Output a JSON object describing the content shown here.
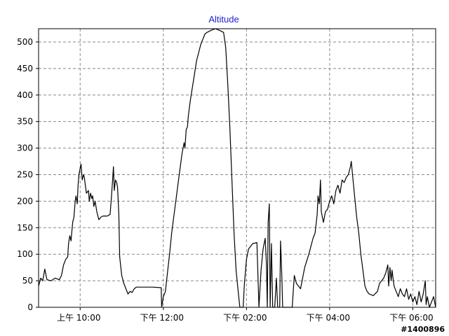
{
  "chart_data": {
    "type": "line",
    "title": "Altitude",
    "xlabel": "",
    "ylabel": "",
    "x_unit": "hours (clock time)",
    "xlim": [
      9.0,
      18.55
    ],
    "ylim": [
      0,
      525
    ],
    "yticks": [
      0,
      50,
      100,
      150,
      200,
      250,
      300,
      350,
      400,
      450,
      500
    ],
    "xticks": [
      {
        "x": 10,
        "label": "上午 10:00"
      },
      {
        "x": 12,
        "label": "下午 12:00"
      },
      {
        "x": 14,
        "label": "下午 02:00"
      },
      {
        "x": 16,
        "label": "下午 04:00"
      },
      {
        "x": 18,
        "label": "下午 06:00"
      }
    ],
    "grid": true,
    "legend": "none",
    "series": [
      {
        "color": "#000000",
        "points": [
          [
            9.0,
            40
          ],
          [
            9.05,
            55
          ],
          [
            9.1,
            50
          ],
          [
            9.15,
            72
          ],
          [
            9.2,
            52
          ],
          [
            9.3,
            50
          ],
          [
            9.4,
            55
          ],
          [
            9.5,
            52
          ],
          [
            9.55,
            60
          ],
          [
            9.6,
            80
          ],
          [
            9.65,
            90
          ],
          [
            9.7,
            95
          ],
          [
            9.72,
            120
          ],
          [
            9.75,
            135
          ],
          [
            9.78,
            125
          ],
          [
            9.82,
            160
          ],
          [
            9.85,
            170
          ],
          [
            9.88,
            200
          ],
          [
            9.9,
            210
          ],
          [
            9.93,
            195
          ],
          [
            9.95,
            230
          ],
          [
            9.97,
            250
          ],
          [
            10.0,
            262
          ],
          [
            10.02,
            270
          ],
          [
            10.05,
            240
          ],
          [
            10.08,
            250
          ],
          [
            10.1,
            245
          ],
          [
            10.12,
            232
          ],
          [
            10.15,
            215
          ],
          [
            10.2,
            220
          ],
          [
            10.22,
            200
          ],
          [
            10.25,
            215
          ],
          [
            10.28,
            205
          ],
          [
            10.3,
            210
          ],
          [
            10.33,
            190
          ],
          [
            10.36,
            200
          ],
          [
            10.4,
            180
          ],
          [
            10.45,
            165
          ],
          [
            10.5,
            170
          ],
          [
            10.55,
            172
          ],
          [
            10.65,
            172
          ],
          [
            10.72,
            175
          ],
          [
            10.75,
            205
          ],
          [
            10.78,
            240
          ],
          [
            10.8,
            265
          ],
          [
            10.82,
            220
          ],
          [
            10.85,
            240
          ],
          [
            10.88,
            235
          ],
          [
            10.9,
            225
          ],
          [
            10.93,
            175
          ],
          [
            10.95,
            95
          ],
          [
            11.0,
            60
          ],
          [
            11.05,
            45
          ],
          [
            11.1,
            35
          ],
          [
            11.15,
            25
          ],
          [
            11.2,
            30
          ],
          [
            11.25,
            28
          ],
          [
            11.3,
            35
          ],
          [
            11.35,
            38
          ],
          [
            11.45,
            38
          ],
          [
            11.6,
            38
          ],
          [
            11.75,
            38
          ],
          [
            11.95,
            37
          ],
          [
            11.96,
            0
          ],
          [
            12.0,
            20
          ],
          [
            12.05,
            30
          ],
          [
            12.1,
            65
          ],
          [
            12.15,
            100
          ],
          [
            12.2,
            140
          ],
          [
            12.25,
            170
          ],
          [
            12.3,
            200
          ],
          [
            12.35,
            230
          ],
          [
            12.4,
            260
          ],
          [
            12.45,
            290
          ],
          [
            12.5,
            310
          ],
          [
            12.52,
            300
          ],
          [
            12.55,
            335
          ],
          [
            12.58,
            340
          ],
          [
            12.6,
            360
          ],
          [
            12.65,
            390
          ],
          [
            12.7,
            415
          ],
          [
            12.75,
            440
          ],
          [
            12.8,
            465
          ],
          [
            12.85,
            480
          ],
          [
            12.9,
            495
          ],
          [
            12.95,
            505
          ],
          [
            13.0,
            515
          ],
          [
            13.05,
            518
          ],
          [
            13.15,
            522
          ],
          [
            13.25,
            525
          ],
          [
            13.35,
            522
          ],
          [
            13.45,
            518
          ],
          [
            13.5,
            490
          ],
          [
            13.55,
            420
          ],
          [
            13.6,
            340
          ],
          [
            13.65,
            240
          ],
          [
            13.7,
            140
          ],
          [
            13.75,
            70
          ],
          [
            13.8,
            30
          ],
          [
            13.84,
            0
          ],
          [
            13.92,
            0
          ],
          [
            13.95,
            45
          ],
          [
            14.0,
            90
          ],
          [
            14.05,
            110
          ],
          [
            14.1,
            115
          ],
          [
            14.15,
            120
          ],
          [
            14.25,
            122
          ],
          [
            14.3,
            0
          ],
          [
            14.35,
            70
          ],
          [
            14.4,
            110
          ],
          [
            14.45,
            130
          ],
          [
            14.48,
            80
          ],
          [
            14.5,
            0
          ],
          [
            14.52,
            160
          ],
          [
            14.55,
            195
          ],
          [
            14.57,
            0
          ],
          [
            14.6,
            120
          ],
          [
            14.63,
            0
          ],
          [
            14.68,
            0
          ],
          [
            14.72,
            55
          ],
          [
            14.75,
            0
          ],
          [
            14.8,
            0
          ],
          [
            14.82,
            125
          ],
          [
            14.85,
            60
          ],
          [
            14.87,
            0
          ],
          [
            14.92,
            0
          ],
          [
            15.1,
            0
          ],
          [
            15.15,
            60
          ],
          [
            15.2,
            45
          ],
          [
            15.3,
            35
          ],
          [
            15.4,
            75
          ],
          [
            15.5,
            100
          ],
          [
            15.6,
            130
          ],
          [
            15.65,
            140
          ],
          [
            15.7,
            175
          ],
          [
            15.72,
            210
          ],
          [
            15.75,
            195
          ],
          [
            15.78,
            240
          ],
          [
            15.8,
            180
          ],
          [
            15.85,
            160
          ],
          [
            15.9,
            180
          ],
          [
            15.95,
            185
          ],
          [
            16.0,
            200
          ],
          [
            16.05,
            210
          ],
          [
            16.1,
            195
          ],
          [
            16.15,
            220
          ],
          [
            16.2,
            230
          ],
          [
            16.25,
            215
          ],
          [
            16.3,
            240
          ],
          [
            16.35,
            235
          ],
          [
            16.4,
            245
          ],
          [
            16.45,
            250
          ],
          [
            16.5,
            265
          ],
          [
            16.52,
            275
          ],
          [
            16.55,
            250
          ],
          [
            16.6,
            210
          ],
          [
            16.65,
            170
          ],
          [
            16.7,
            140
          ],
          [
            16.75,
            100
          ],
          [
            16.8,
            70
          ],
          [
            16.85,
            40
          ],
          [
            16.9,
            30
          ],
          [
            16.95,
            25
          ],
          [
            17.05,
            22
          ],
          [
            17.15,
            30
          ],
          [
            17.2,
            45
          ],
          [
            17.25,
            50
          ],
          [
            17.3,
            55
          ],
          [
            17.35,
            65
          ],
          [
            17.4,
            80
          ],
          [
            17.42,
            40
          ],
          [
            17.45,
            75
          ],
          [
            17.48,
            50
          ],
          [
            17.5,
            70
          ],
          [
            17.55,
            40
          ],
          [
            17.6,
            30
          ],
          [
            17.65,
            20
          ],
          [
            17.7,
            35
          ],
          [
            17.75,
            25
          ],
          [
            17.8,
            20
          ],
          [
            17.85,
            35
          ],
          [
            17.9,
            15
          ],
          [
            17.95,
            25
          ],
          [
            18.0,
            10
          ],
          [
            18.05,
            20
          ],
          [
            18.1,
            5
          ],
          [
            18.15,
            30
          ],
          [
            18.2,
            10
          ],
          [
            18.25,
            25
          ],
          [
            18.3,
            50
          ],
          [
            18.32,
            5
          ],
          [
            18.35,
            20
          ],
          [
            18.4,
            0
          ],
          [
            18.45,
            10
          ],
          [
            18.5,
            20
          ],
          [
            18.55,
            0
          ]
        ]
      }
    ]
  },
  "watermark": "#1400896"
}
